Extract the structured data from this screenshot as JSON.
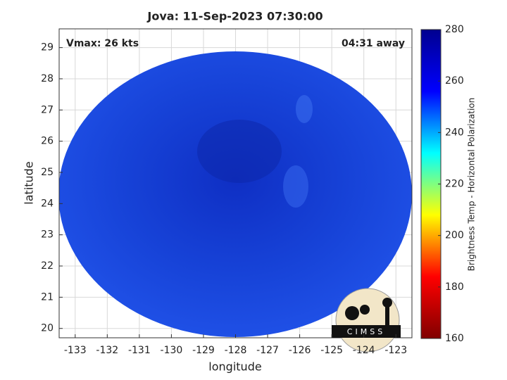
{
  "chart_data": {
    "type": "image",
    "title": "Jova: 11-Sep-2023 07:30:00",
    "annotations": [
      "Vmax: 26 kts",
      "04:31 away"
    ],
    "xlabel": "longitude",
    "ylabel": "latitude",
    "xlim": [
      -133.5,
      -122.5
    ],
    "xticks": [
      -133,
      -132,
      -131,
      -130,
      -129,
      -128,
      -127,
      -126,
      -125,
      -124,
      -123
    ],
    "ylim": [
      19.7,
      29.6
    ],
    "yticks": [
      20,
      21,
      22,
      23,
      24,
      25,
      26,
      27,
      28,
      29
    ],
    "grid": true,
    "colorbar": {
      "label": "Brightness Temp - Horizontal Polarization",
      "lim": [
        160,
        280
      ],
      "ticks": [
        160,
        180,
        200,
        220,
        240,
        260,
        280
      ],
      "colormap": [
        "#800000",
        "#ff0000",
        "#ffff00",
        "#00ffff",
        "#0000ff",
        "#00008f"
      ]
    },
    "logo": "CIMSS"
  }
}
